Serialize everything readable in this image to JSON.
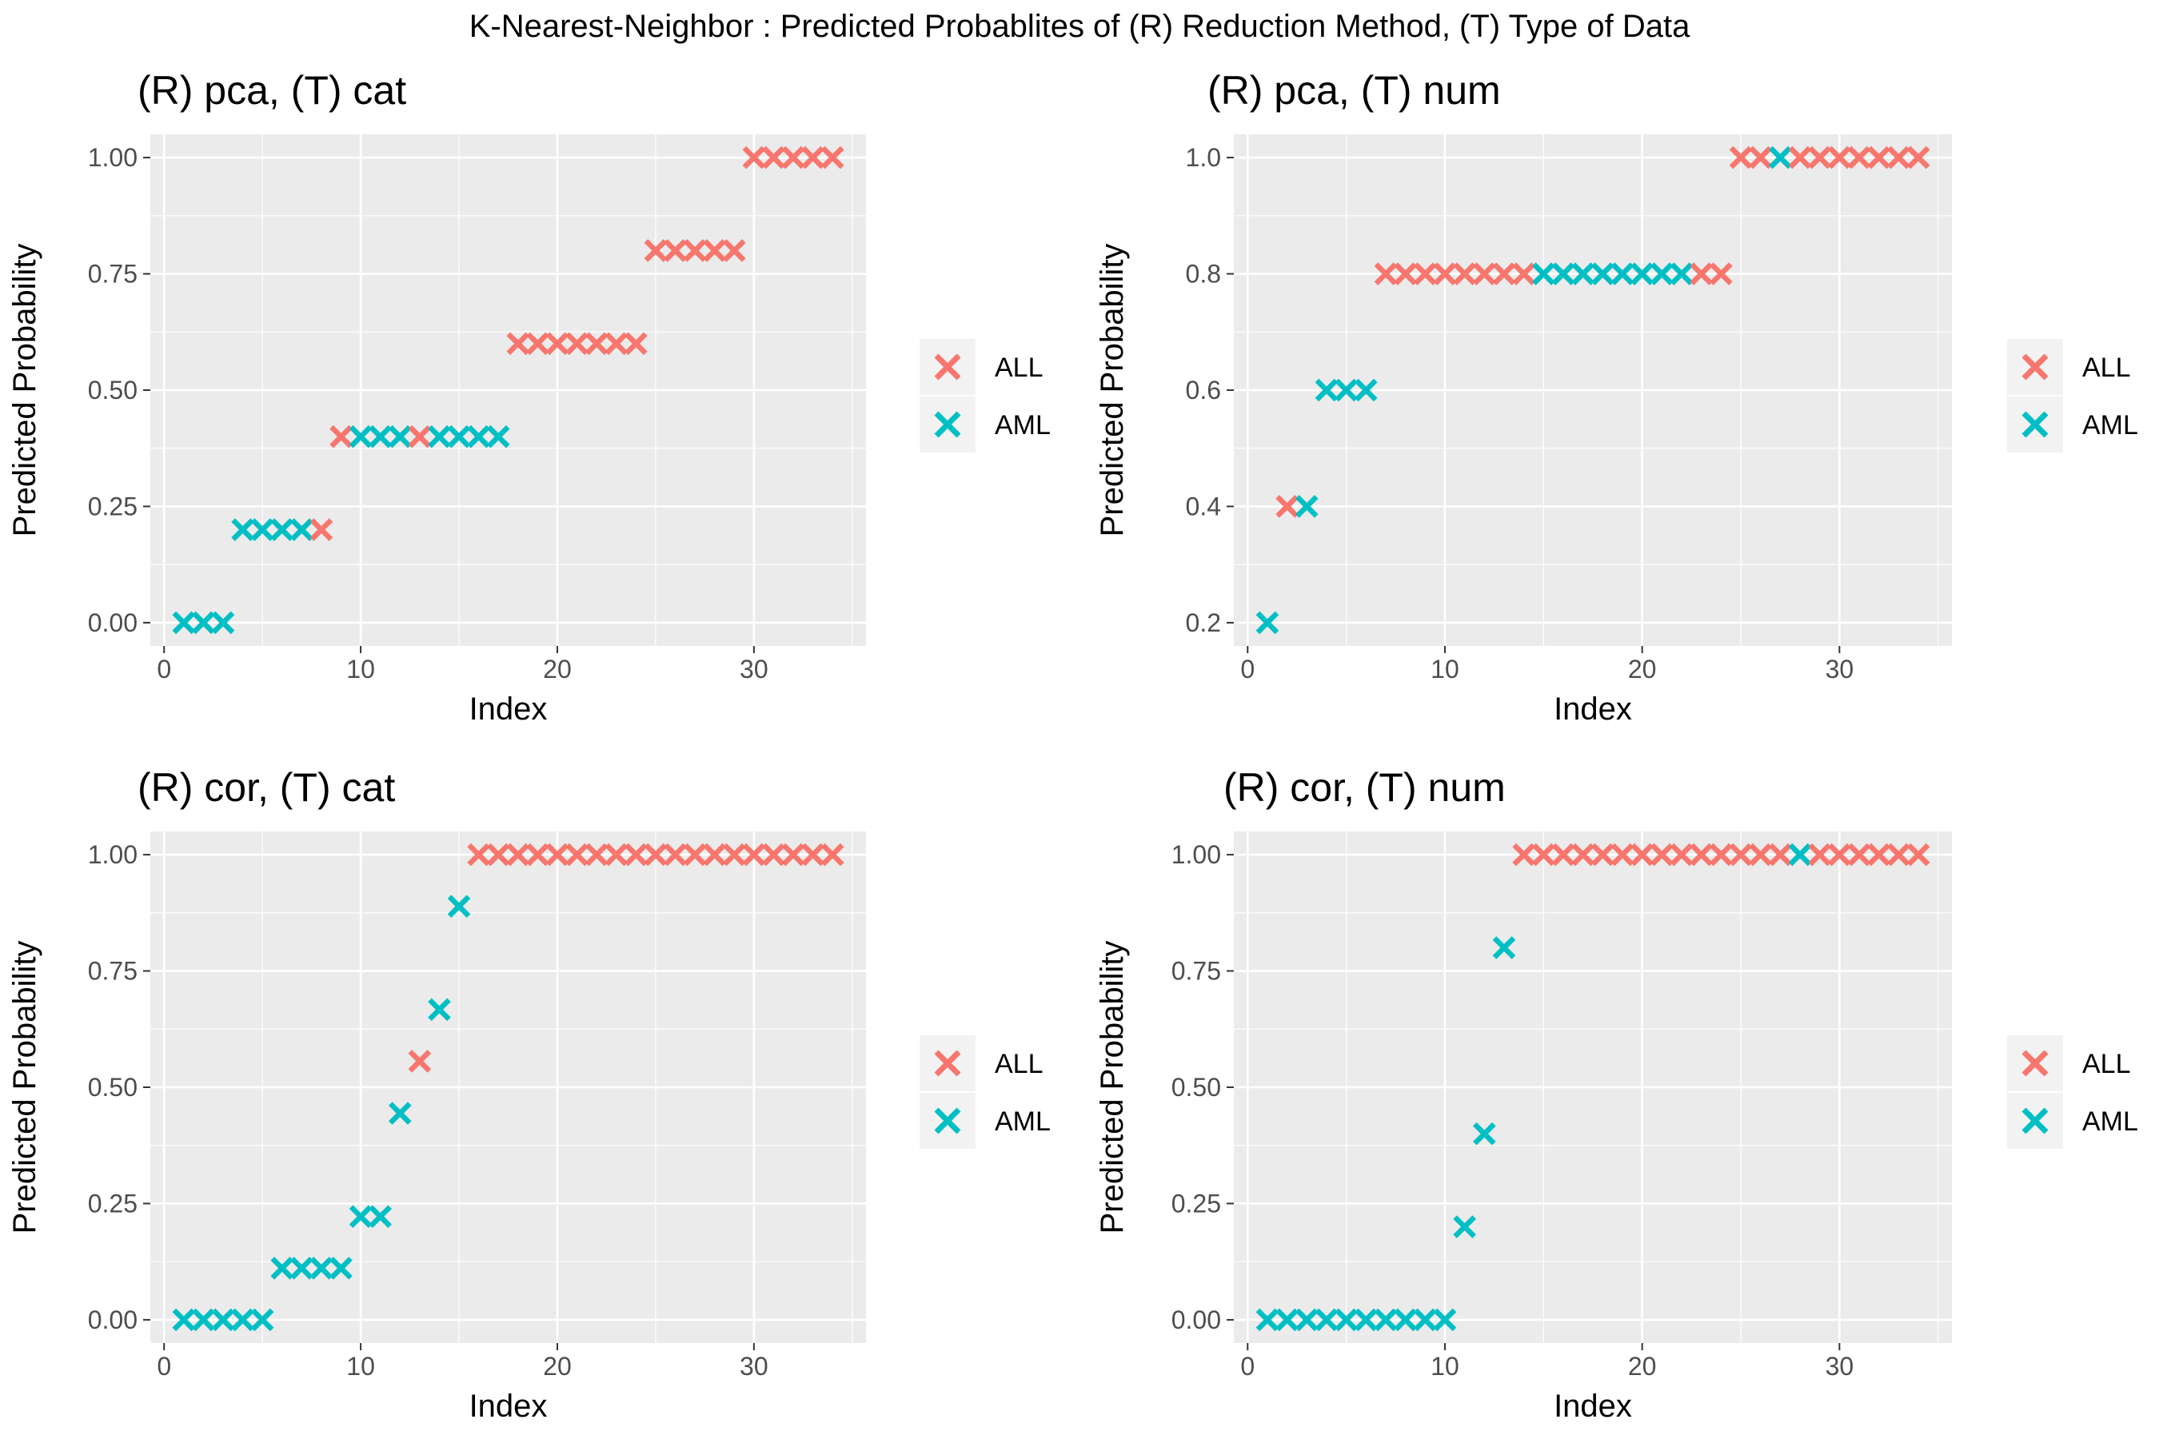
{
  "figure_title": "K-Nearest-Neighbor : Predicted Probablites of (R) Reduction Method, (T) Type of Data",
  "legend": {
    "entries": [
      {
        "label": "ALL",
        "color": "#F8766D"
      },
      {
        "label": "AML",
        "color": "#00BFC4"
      }
    ]
  },
  "chart_data": [
    {
      "type": "scatter",
      "title": "(R) pca, (T) cat",
      "xlabel": "Index",
      "ylabel": "Predicted Probability",
      "xlim": [
        -0.7,
        35.7
      ],
      "ylim": [
        -0.05,
        1.05
      ],
      "xticks": [
        0,
        10,
        20,
        30
      ],
      "yticks": [
        0,
        0.25,
        0.5,
        0.75,
        1
      ],
      "ytick_labels": [
        "0.00",
        "0.25",
        "0.50",
        "0.75",
        "1.00"
      ],
      "grid": true,
      "legend_position": "right",
      "marker": "x",
      "x": [
        1,
        2,
        3,
        4,
        5,
        6,
        7,
        8,
        9,
        10,
        11,
        12,
        13,
        14,
        15,
        16,
        17,
        18,
        19,
        20,
        21,
        22,
        23,
        24,
        25,
        26,
        27,
        28,
        29,
        30,
        31,
        32,
        33,
        34
      ],
      "y": [
        0,
        0,
        0,
        0.2,
        0.2,
        0.2,
        0.2,
        0.2,
        0.4,
        0.4,
        0.4,
        0.4,
        0.4,
        0.4,
        0.4,
        0.4,
        0.4,
        0.6,
        0.6,
        0.6,
        0.6,
        0.6,
        0.6,
        0.6,
        0.8,
        0.8,
        0.8,
        0.8,
        0.8,
        1,
        1,
        1,
        1,
        1
      ],
      "class": [
        "AML",
        "AML",
        "AML",
        "AML",
        "AML",
        "AML",
        "AML",
        "ALL",
        "ALL",
        "AML",
        "AML",
        "AML",
        "ALL",
        "AML",
        "AML",
        "AML",
        "AML",
        "ALL",
        "ALL",
        "ALL",
        "ALL",
        "ALL",
        "ALL",
        "ALL",
        "ALL",
        "ALL",
        "ALL",
        "ALL",
        "ALL",
        "ALL",
        "ALL",
        "ALL",
        "ALL",
        "ALL"
      ]
    },
    {
      "type": "scatter",
      "title": "(R) pca, (T) num",
      "xlabel": "Index",
      "ylabel": "Predicted Probability",
      "xlim": [
        -0.7,
        35.7
      ],
      "ylim": [
        0.16,
        1.04
      ],
      "xticks": [
        0,
        10,
        20,
        30
      ],
      "yticks": [
        0.2,
        0.4,
        0.6,
        0.8,
        1.0
      ],
      "ytick_labels": [
        "0.2",
        "0.4",
        "0.6",
        "0.8",
        "1.0"
      ],
      "grid": true,
      "legend_position": "right",
      "marker": "x",
      "x": [
        1,
        2,
        3,
        4,
        5,
        6,
        7,
        8,
        9,
        10,
        11,
        12,
        13,
        14,
        15,
        16,
        17,
        18,
        19,
        20,
        21,
        22,
        23,
        24,
        25,
        26,
        27,
        28,
        29,
        30,
        31,
        32,
        33,
        34
      ],
      "y": [
        0.2,
        0.4,
        0.4,
        0.6,
        0.6,
        0.6,
        0.8,
        0.8,
        0.8,
        0.8,
        0.8,
        0.8,
        0.8,
        0.8,
        0.8,
        0.8,
        0.8,
        0.8,
        0.8,
        0.8,
        0.8,
        0.8,
        0.8,
        0.8,
        1,
        1,
        1,
        1,
        1,
        1,
        1,
        1,
        1,
        1
      ],
      "class": [
        "AML",
        "ALL",
        "AML",
        "AML",
        "AML",
        "AML",
        "ALL",
        "ALL",
        "ALL",
        "ALL",
        "ALL",
        "ALL",
        "ALL",
        "ALL",
        "AML",
        "AML",
        "AML",
        "AML",
        "AML",
        "AML",
        "AML",
        "AML",
        "ALL",
        "ALL",
        "ALL",
        "ALL",
        "AML",
        "ALL",
        "ALL",
        "ALL",
        "ALL",
        "ALL",
        "ALL",
        "ALL"
      ]
    },
    {
      "type": "scatter",
      "title": "(R) cor, (T) cat",
      "xlabel": "Index",
      "ylabel": "Predicted Probability",
      "xlim": [
        -0.7,
        35.7
      ],
      "ylim": [
        -0.05,
        1.05
      ],
      "xticks": [
        0,
        10,
        20,
        30
      ],
      "yticks": [
        0,
        0.25,
        0.5,
        0.75,
        1
      ],
      "ytick_labels": [
        "0.00",
        "0.25",
        "0.50",
        "0.75",
        "1.00"
      ],
      "grid": true,
      "legend_position": "right",
      "marker": "x",
      "x": [
        1,
        2,
        3,
        4,
        5,
        6,
        7,
        8,
        9,
        10,
        11,
        12,
        13,
        14,
        15,
        16,
        17,
        18,
        19,
        20,
        21,
        22,
        23,
        24,
        25,
        26,
        27,
        28,
        29,
        30,
        31,
        32,
        33,
        34
      ],
      "y": [
        0,
        0,
        0,
        0,
        0,
        0.111,
        0.111,
        0.111,
        0.111,
        0.222,
        0.222,
        0.444,
        0.556,
        0.667,
        0.889,
        1,
        1,
        1,
        1,
        1,
        1,
        1,
        1,
        1,
        1,
        1,
        1,
        1,
        1,
        1,
        1,
        1,
        1,
        1
      ],
      "class": [
        "AML",
        "AML",
        "AML",
        "AML",
        "AML",
        "AML",
        "AML",
        "AML",
        "AML",
        "AML",
        "AML",
        "AML",
        "ALL",
        "AML",
        "AML",
        "ALL",
        "ALL",
        "ALL",
        "ALL",
        "ALL",
        "ALL",
        "ALL",
        "ALL",
        "ALL",
        "ALL",
        "ALL",
        "ALL",
        "ALL",
        "ALL",
        "ALL",
        "ALL",
        "ALL",
        "ALL",
        "ALL"
      ]
    },
    {
      "type": "scatter",
      "title": "(R) cor, (T) num",
      "xlabel": "Index",
      "ylabel": "Predicted Probability",
      "xlim": [
        -0.7,
        35.7
      ],
      "ylim": [
        -0.05,
        1.05
      ],
      "xticks": [
        0,
        10,
        20,
        30
      ],
      "yticks": [
        0,
        0.25,
        0.5,
        0.75,
        1
      ],
      "ytick_labels": [
        "0.00",
        "0.25",
        "0.50",
        "0.75",
        "1.00"
      ],
      "grid": true,
      "legend_position": "right",
      "marker": "x",
      "x": [
        1,
        2,
        3,
        4,
        5,
        6,
        7,
        8,
        9,
        10,
        11,
        12,
        13,
        14,
        15,
        16,
        17,
        18,
        19,
        20,
        21,
        22,
        23,
        24,
        25,
        26,
        27,
        28,
        29,
        30,
        31,
        32,
        33,
        34
      ],
      "y": [
        0,
        0,
        0,
        0,
        0,
        0,
        0,
        0,
        0,
        0,
        0.2,
        0.4,
        0.8,
        1,
        1,
        1,
        1,
        1,
        1,
        1,
        1,
        1,
        1,
        1,
        1,
        1,
        1,
        1,
        1,
        1,
        1,
        1,
        1,
        1
      ],
      "class": [
        "AML",
        "AML",
        "AML",
        "AML",
        "AML",
        "AML",
        "AML",
        "AML",
        "AML",
        "AML",
        "AML",
        "AML",
        "AML",
        "ALL",
        "ALL",
        "ALL",
        "ALL",
        "ALL",
        "ALL",
        "ALL",
        "ALL",
        "ALL",
        "ALL",
        "ALL",
        "ALL",
        "ALL",
        "ALL",
        "AML",
        "ALL",
        "ALL",
        "ALL",
        "ALL",
        "ALL",
        "ALL"
      ]
    }
  ]
}
